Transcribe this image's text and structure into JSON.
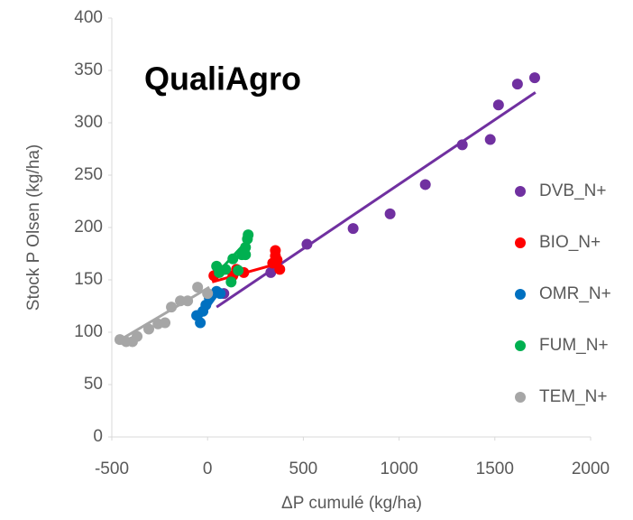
{
  "chart_data": {
    "type": "scatter",
    "title": "QualiAgro",
    "xlabel": "ΔP cumulé (kg/ha)",
    "ylabel": "Stock P Olsen (kg/ha)",
    "xlim": [
      -500,
      2000
    ],
    "xticks": [
      -500,
      0,
      500,
      1000,
      1500,
      2000
    ],
    "ylim": [
      0,
      400
    ],
    "yticks": [
      0,
      50,
      100,
      150,
      200,
      250,
      300,
      350,
      400
    ],
    "grid": false,
    "legend": "right",
    "series": [
      {
        "name": "DVB_N+",
        "color": "#7030a0",
        "x": [
          85,
          330,
          519,
          760,
          953,
          1137,
          1330,
          1476,
          1519,
          1618,
          1708
        ],
        "values": [
          137,
          157,
          184,
          199,
          213,
          241,
          279,
          284,
          317,
          337,
          343
        ],
        "trend": {
          "x": [
            47,
            1712
          ],
          "y": [
            124,
            329
          ]
        }
      },
      {
        "name": "BIO_N+",
        "color": "#ff0000",
        "x": [
          33,
          71,
          132,
          151,
          189,
          340,
          354,
          354,
          363,
          377
        ],
        "values": [
          154,
          159,
          154,
          160,
          157,
          166,
          173,
          178,
          169,
          160
        ],
        "trend": {
          "x": [
            24,
            377
          ],
          "y": [
            148,
            166
          ]
        }
      },
      {
        "name": "OMR_N+",
        "color": "#0070c0",
        "x": [
          -57,
          -38,
          -24,
          -9,
          9,
          47,
          66
        ],
        "values": [
          116,
          109,
          120,
          126,
          133,
          139,
          137
        ],
        "trend": {
          "x": [
            -57,
            71
          ],
          "y": [
            109,
            141
          ]
        }
      },
      {
        "name": "FUM_N+",
        "color": "#00b050",
        "x": [
          47,
          61,
          94,
          123,
          132,
          160,
          179,
          198,
          208,
          212,
          198
        ],
        "values": [
          163,
          157,
          160,
          148,
          170,
          159,
          174,
          181,
          189,
          193,
          174
        ],
        "trend": {
          "x": [
            38,
            226
          ],
          "y": [
            154,
            191
          ]
        }
      },
      {
        "name": "TEM_N+",
        "color": "#a6a6a6",
        "x": [
          -458,
          -425,
          -392,
          -368,
          -307,
          -259,
          -222,
          -189,
          -142,
          -104,
          -52,
          0
        ],
        "values": [
          93,
          91,
          91,
          96,
          103,
          108,
          109,
          124,
          130,
          130,
          143,
          137
        ],
        "trend": {
          "x": [
            -481,
            9
          ],
          "y": [
            90,
            143
          ]
        }
      }
    ]
  }
}
